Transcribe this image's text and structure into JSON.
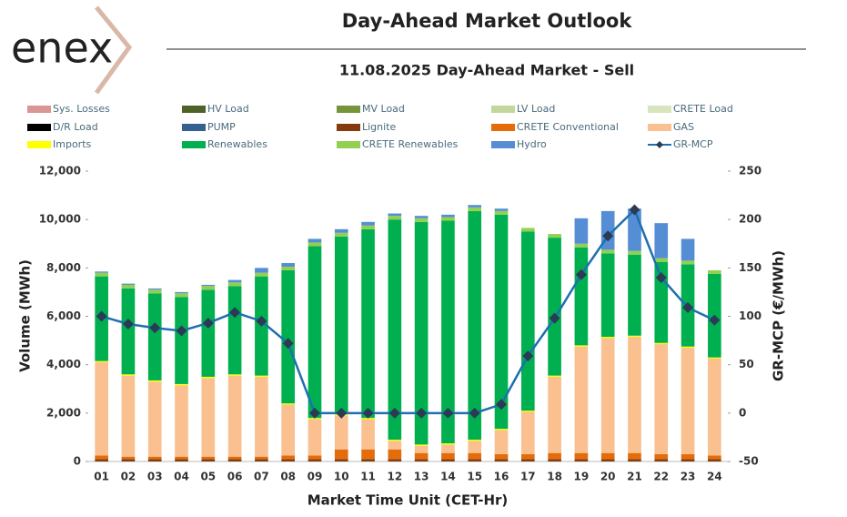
{
  "logo": "enex",
  "chart_data": {
    "type": "bar",
    "title": "Day-Ahead Market Outlook",
    "subtitle": "11.08.2025  Day-Ahead Market - Sell",
    "x_label": "Market Time Unit (CET-Hr)",
    "y_label": "Volume (MWh)",
    "y2_label": "GR-MCP (€/MWh)",
    "categories": [
      "01",
      "02",
      "03",
      "04",
      "05",
      "06",
      "07",
      "08",
      "09",
      "10",
      "11",
      "12",
      "13",
      "14",
      "15",
      "16",
      "17",
      "18",
      "19",
      "20",
      "21",
      "22",
      "23",
      "24"
    ],
    "ylim": [
      0,
      12000
    ],
    "yticks": [
      0,
      {
        "value": 2000,
        "label": "2,000"
      },
      {
        "value": 4000,
        "label": "4,000"
      },
      {
        "value": 6000,
        "label": "6,000"
      },
      {
        "value": 8000,
        "label": "8,000"
      },
      {
        "value": 10000,
        "label": "10,000"
      },
      {
        "value": 12000,
        "label": "12,000"
      }
    ],
    "y2lim": [
      -50,
      250
    ],
    "y2ticks": [
      -50,
      0,
      50,
      100,
      150,
      200,
      250
    ],
    "stacked": true,
    "series": [
      {
        "name": "Sys. Losses",
        "color": "#d99694",
        "values": [
          0,
          0,
          0,
          0,
          0,
          0,
          0,
          0,
          0,
          0,
          0,
          0,
          0,
          0,
          0,
          0,
          0,
          0,
          0,
          0,
          0,
          0,
          0,
          0
        ]
      },
      {
        "name": "HV Load",
        "color": "#4f6228",
        "values": [
          0,
          0,
          0,
          0,
          0,
          0,
          0,
          0,
          0,
          0,
          0,
          0,
          0,
          0,
          0,
          0,
          0,
          0,
          0,
          0,
          0,
          0,
          0,
          0
        ]
      },
      {
        "name": "MV Load",
        "color": "#77933c",
        "values": [
          0,
          0,
          0,
          0,
          0,
          0,
          0,
          0,
          0,
          0,
          0,
          0,
          0,
          0,
          0,
          0,
          0,
          0,
          0,
          0,
          0,
          0,
          0,
          0
        ]
      },
      {
        "name": "LV Load",
        "color": "#c3d69b",
        "values": [
          0,
          0,
          0,
          0,
          0,
          0,
          0,
          0,
          0,
          0,
          0,
          0,
          0,
          0,
          0,
          0,
          0,
          0,
          0,
          0,
          0,
          0,
          0,
          0
        ]
      },
      {
        "name": "CRETE Load",
        "color": "#d7e4bd",
        "values": [
          0,
          0,
          0,
          0,
          0,
          0,
          0,
          0,
          0,
          0,
          0,
          0,
          0,
          0,
          0,
          0,
          0,
          0,
          0,
          0,
          0,
          0,
          0,
          0
        ]
      },
      {
        "name": "D/R Load",
        "color": "#000000",
        "values": [
          0,
          0,
          0,
          0,
          0,
          0,
          0,
          0,
          0,
          0,
          0,
          0,
          0,
          0,
          0,
          0,
          0,
          0,
          0,
          0,
          0,
          0,
          0,
          0
        ]
      },
      {
        "name": "PUMP",
        "color": "#366092",
        "values": [
          0,
          0,
          0,
          0,
          0,
          0,
          0,
          0,
          0,
          0,
          0,
          0,
          0,
          0,
          0,
          0,
          0,
          0,
          0,
          0,
          0,
          0,
          0,
          0
        ]
      },
      {
        "name": "Lignite",
        "color": "#843c0c",
        "values": [
          100,
          100,
          100,
          100,
          100,
          100,
          100,
          100,
          100,
          100,
          100,
          100,
          100,
          100,
          100,
          100,
          100,
          100,
          100,
          100,
          100,
          100,
          100,
          100
        ]
      },
      {
        "name": "CRETE Conventional",
        "color": "#e46c0a",
        "values": [
          150,
          100,
          100,
          100,
          100,
          100,
          100,
          150,
          150,
          400,
          400,
          400,
          250,
          250,
          250,
          200,
          200,
          250,
          250,
          250,
          250,
          200,
          200,
          150
        ]
      },
      {
        "name": "GAS",
        "color": "#fac090",
        "values": [
          3850,
          3350,
          3100,
          2950,
          3250,
          3350,
          3300,
          2100,
          1500,
          1400,
          1250,
          350,
          300,
          350,
          500,
          1000,
          1750,
          3150,
          4400,
          4750,
          4800,
          4550,
          4400,
          4000
        ]
      },
      {
        "name": "Imports",
        "color": "#ffff00",
        "values": [
          50,
          50,
          50,
          50,
          50,
          50,
          50,
          50,
          50,
          50,
          50,
          50,
          50,
          50,
          50,
          50,
          50,
          50,
          50,
          50,
          50,
          50,
          50,
          50
        ]
      },
      {
        "name": "Renewables",
        "color": "#00b050",
        "values": [
          3500,
          3550,
          3600,
          3600,
          3600,
          3650,
          4100,
          5500,
          7100,
          7350,
          7800,
          9100,
          9200,
          9200,
          9450,
          8850,
          7400,
          5700,
          4050,
          3450,
          3350,
          3350,
          3400,
          3450
        ]
      },
      {
        "name": "CRETE Renewables",
        "color": "#92d050",
        "values": [
          150,
          150,
          150,
          150,
          150,
          150,
          150,
          150,
          150,
          150,
          150,
          150,
          150,
          150,
          150,
          150,
          150,
          150,
          150,
          150,
          150,
          150,
          150,
          150
        ]
      },
      {
        "name": "Hydro",
        "color": "#558ed5",
        "values": [
          50,
          50,
          50,
          50,
          50,
          100,
          200,
          150,
          150,
          150,
          150,
          100,
          100,
          100,
          100,
          100,
          0,
          0,
          1050,
          1600,
          1750,
          1450,
          900,
          0
        ]
      },
      {
        "name": "GR-MCP",
        "color": "#1f6fb0",
        "marker_color": "#2b3b55",
        "type": "line",
        "axis": "y2",
        "values": [
          100,
          92,
          88,
          85,
          93,
          104,
          95,
          72,
          0,
          0,
          0,
          0,
          0,
          0,
          0,
          9,
          59,
          98,
          143,
          183,
          210,
          140,
          109,
          96
        ]
      }
    ]
  }
}
